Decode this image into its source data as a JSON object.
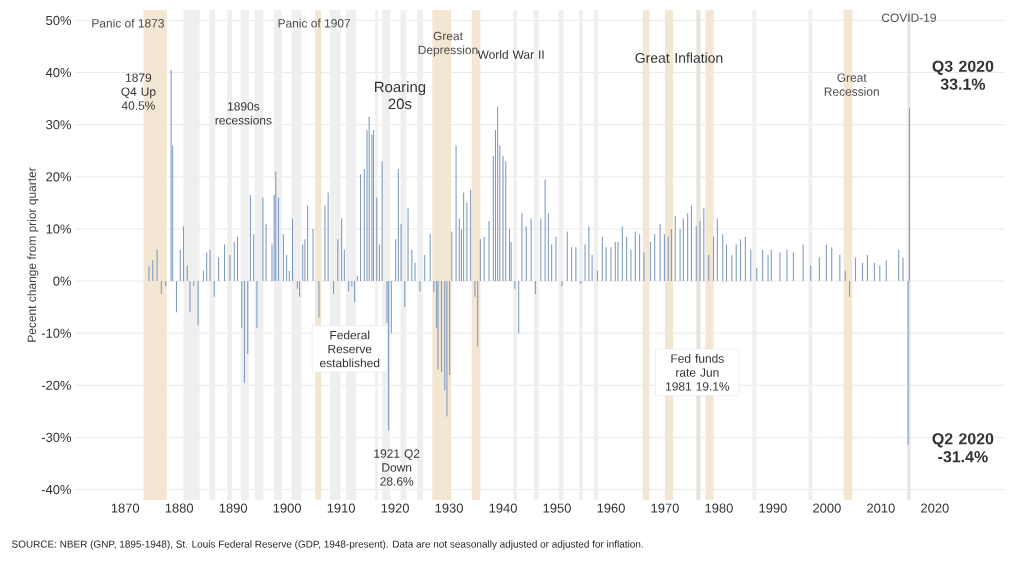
{
  "chart_data": {
    "type": "bar",
    "ylabel": "Pecent change from prior quarter",
    "x": [
      1874.4,
      1875.1,
      1875.9,
      1876.7,
      1877.5,
      1878.5,
      1878.8,
      1879.5,
      1880.2,
      1880.8,
      1881.5,
      1882.0,
      1882.7,
      1883.5,
      1884.5,
      1885.1,
      1885.7,
      1886.5,
      1887.3,
      1888.4,
      1889.4,
      1890.2,
      1890.8,
      1891.6,
      1892.1,
      1892.7,
      1893.2,
      1893.8,
      1894.4,
      1895.5,
      1896.1,
      1897.2,
      1897.6,
      1897.9,
      1898.4,
      1899.3,
      1899.9,
      1900.4,
      1901.0,
      1901.9,
      1902.3,
      1902.9,
      1903.3,
      1903.8,
      1904.8,
      1905.9,
      1907.0,
      1907.6,
      1908.6,
      1909.4,
      1910.1,
      1910.6,
      1911.4,
      1912.0,
      1912.5,
      1913.0,
      1913.6,
      1914.3,
      1914.8,
      1915.2,
      1915.7,
      1916.0,
      1916.6,
      1917.1,
      1917.6,
      1918.5,
      1918.8,
      1919.3,
      1920.1,
      1920.6,
      1921.1,
      1921.8,
      1922.4,
      1923.1,
      1923.7,
      1924.6,
      1925.5,
      1926.5,
      1927.2,
      1927.7,
      1927.95,
      1928.6,
      1929.2,
      1929.6,
      1930.1,
      1930.5,
      1931.3,
      1931.9,
      1932.3,
      1932.7,
      1933.3,
      1934.0,
      1934.8,
      1935.3,
      1935.8,
      1936.5,
      1937.4,
      1938.2,
      1938.6,
      1939.0,
      1939.4,
      1940.0,
      1940.5,
      1941.2,
      1941.5,
      1942.2,
      1942.9,
      1943.5,
      1944.3,
      1945.2,
      1946.0,
      1947.0,
      1947.8,
      1948.4,
      1949.0,
      1949.8,
      1950.9,
      1951.9,
      1952.7,
      1953.5,
      1954.4,
      1955.2,
      1955.9,
      1956.5,
      1957.5,
      1958.4,
      1959.1,
      1960.0,
      1960.8,
      1961.3,
      1962.1,
      1962.9,
      1963.7,
      1964.5,
      1965.3,
      1966.1,
      1967.3,
      1968.1,
      1969.1,
      1969.9,
      1970.6,
      1971.2,
      1971.9,
      1972.8,
      1973.4,
      1974.2,
      1974.9,
      1975.8,
      1976.5,
      1977.2,
      1978.1,
      1979.0,
      1979.7,
      1980.7,
      1981.4,
      1982.4,
      1983.2,
      1984.0,
      1984.9,
      1985.9,
      1987.0,
      1988.1,
      1989.1,
      1989.7,
      1991.3,
      1992.6,
      1993.8,
      1995.6,
      1997.0,
      1998.6,
      1999.9,
      2000.9,
      2002.4,
      2003.4,
      2004.2,
      2005.3,
      2006.6,
      2007.5,
      2008.8,
      2009.8,
      2011.0,
      2013.3,
      2014.1,
      2015.05,
      2015.3
    ],
    "values": [
      2.8,
      4,
      6,
      -2.5,
      -1,
      40.5,
      26,
      -6,
      6,
      10.5,
      3,
      -6,
      -1,
      -8.5,
      2,
      5.5,
      6,
      -3,
      4.5,
      7,
      5,
      7.5,
      8.5,
      -9,
      -19.5,
      -14,
      16.5,
      9,
      -9,
      16,
      11,
      7,
      16.5,
      21,
      16,
      9,
      5,
      2,
      12,
      -1.5,
      -3,
      7,
      8,
      14.5,
      10,
      -7,
      14.5,
      17,
      -2.5,
      8,
      12,
      6,
      -2,
      -1,
      -4,
      1,
      20.5,
      21.5,
      29,
      31.5,
      28,
      29,
      16,
      7,
      23,
      -8,
      -28.6,
      -10,
      8,
      21.5,
      11,
      -5,
      14,
      6,
      3.5,
      -2,
      5,
      9,
      -2,
      -9,
      -17,
      -17.5,
      -21,
      -26,
      -18,
      9.5,
      26,
      12,
      10,
      17,
      15,
      17.5,
      -3,
      -12.5,
      8,
      8.5,
      11.5,
      24,
      29,
      33.5,
      26,
      24,
      23,
      10,
      7.5,
      -1.5,
      -10,
      13,
      10.5,
      12,
      -2.5,
      12,
      19.5,
      13,
      7,
      8.5,
      -1,
      9.5,
      6.5,
      6.5,
      -0.5,
      7,
      10.5,
      5,
      2,
      8.5,
      6.5,
      6.5,
      7.5,
      7.5,
      10.5,
      8.5,
      6,
      9.5,
      9,
      5.5,
      7.5,
      9,
      11,
      9,
      8.5,
      10,
      12.5,
      10,
      12,
      13,
      14.5,
      10.5,
      11.5,
      14,
      5,
      8.5,
      12,
      9,
      7,
      5,
      7,
      8,
      8.5,
      6,
      2.5,
      6,
      5,
      6,
      5.5,
      6,
      5.5,
      7,
      3,
      4.5,
      7,
      6.5,
      5,
      2,
      -3,
      4.5,
      3.5,
      5,
      3.5,
      3,
      4,
      6,
      4.5,
      -31.4,
      33.1
    ],
    "color": "#7f9cc0",
    "xlim": [
      1860.7,
      2033
    ],
    "ylim": [
      -42,
      52
    ],
    "xticks": [
      1870,
      1880,
      1890,
      1900,
      1910,
      1920,
      1930,
      1940,
      1950,
      1960,
      1970,
      1980,
      1990,
      2000,
      2010,
      2020
    ],
    "yticks": [
      {
        "value": -40,
        "label": "-40%"
      },
      {
        "value": -30,
        "label": "-30%"
      },
      {
        "value": -20,
        "label": "-20%"
      },
      {
        "value": -10,
        "label": "-10%"
      },
      {
        "value": 0,
        "label": "0%"
      },
      {
        "value": 10,
        "label": "10%"
      },
      {
        "value": 20,
        "label": "20%"
      },
      {
        "value": 30,
        "label": "30%"
      },
      {
        "value": 40,
        "label": "40%"
      },
      {
        "value": 50,
        "label": "50%"
      }
    ],
    "grid": "y",
    "bands": [
      {
        "axis": "x",
        "from": 1873.4,
        "to": 1877.7,
        "label": "Panic of 1873",
        "color": "#f3e6d2"
      },
      {
        "axis": "x",
        "from": 1880.8,
        "to": 1883.8,
        "color": "#efefef"
      },
      {
        "axis": "x",
        "from": 1885.6,
        "to": 1886.7,
        "color": "#efefef"
      },
      {
        "axis": "x",
        "from": 1888.9,
        "to": 1889.8,
        "color": "#efefef"
      },
      {
        "axis": "x",
        "from": 1891.4,
        "to": 1892.9,
        "color": "#efefef"
      },
      {
        "axis": "x",
        "from": 1894.0,
        "to": 1895.6,
        "color": "#efefef"
      },
      {
        "axis": "x",
        "from": 1897.6,
        "to": 1899.0,
        "color": "#efefef"
      },
      {
        "axis": "x",
        "from": 1900.8,
        "to": 1902.7,
        "color": "#efefef"
      },
      {
        "axis": "x",
        "from": 1905.2,
        "to": 1906.3,
        "label": "Panic of 1907",
        "color": "#f3e6d2"
      },
      {
        "axis": "x",
        "from": 1907.9,
        "to": 1909.9,
        "color": "#efefef"
      },
      {
        "axis": "x",
        "from": 1910.9,
        "to": 1912.8,
        "color": "#efefef"
      },
      {
        "axis": "x",
        "from": 1916.3,
        "to": 1916.8,
        "color": "#efefef"
      },
      {
        "axis": "x",
        "from": 1917.6,
        "to": 1919.1,
        "color": "#efefef"
      },
      {
        "axis": "x",
        "from": 1921.0,
        "to": 1922.1,
        "color": "#efefef"
      },
      {
        "axis": "x",
        "from": 1924.1,
        "to": 1925.2,
        "color": "#efefef"
      },
      {
        "axis": "x",
        "from": 1926.9,
        "to": 1930.4,
        "label": "Great Depression",
        "color": "#f3e6d2"
      },
      {
        "axis": "x",
        "from": 1934.2,
        "to": 1935.8,
        "color": "#f3e6d2"
      },
      {
        "axis": "x",
        "from": 1941.9,
        "to": 1942.6,
        "color": "#efefef"
      },
      {
        "axis": "x",
        "from": 1945.7,
        "to": 1946.6,
        "color": "#efefef"
      },
      {
        "axis": "x",
        "from": 1950.3,
        "to": 1951.2,
        "color": "#efefef"
      },
      {
        "axis": "x",
        "from": 1954.1,
        "to": 1954.8,
        "color": "#efefef"
      },
      {
        "axis": "x",
        "from": 1956.8,
        "to": 1957.6,
        "color": "#efefef"
      },
      {
        "axis": "x",
        "from": 1965.9,
        "to": 1967.1,
        "color": "#f3e6d2"
      },
      {
        "axis": "x",
        "from": 1970.0,
        "to": 1971.5,
        "color": "#f3e6d2"
      },
      {
        "axis": "x",
        "from": 1975.8,
        "to": 1976.6,
        "color": "#e8e4dc"
      },
      {
        "axis": "x",
        "from": 1977.5,
        "to": 1979.0,
        "color": "#f3e6d2"
      },
      {
        "axis": "x",
        "from": 1986.2,
        "to": 1986.9,
        "color": "#efefef"
      },
      {
        "axis": "x",
        "from": 1996.6,
        "to": 1997.3,
        "color": "#efefef"
      },
      {
        "axis": "x",
        "from": 2003.1,
        "to": 2004.7,
        "label": "Great Recession",
        "color": "#f3e6d2"
      },
      {
        "axis": "x",
        "from": 2014.9,
        "to": 2015.5,
        "label": "COVID-19",
        "color": "#e6e6e6"
      }
    ],
    "annotations": [
      {
        "text": "1879 Q4 Up 40.5%",
        "x": 1878.5,
        "y": 40.5
      },
      "1890s recessions",
      "Federal Reserve established",
      "Roaring 20s",
      {
        "text": "1921 Q2 Down 28.6%",
        "x": 1918.8,
        "y": -28.6
      },
      "World War II",
      "Great Inflation",
      "Fed funds rate Jun 1981 19.1%",
      "Q3 2020 33.1%",
      "Q2 2020 -31.4%",
      "SOURCE: NBER (GNP, 1895-1948), St. Louis Federal Reserve (GDP, 1948-present). Data are not seasonally adjusted or adjusted for inflation."
    ]
  }
}
